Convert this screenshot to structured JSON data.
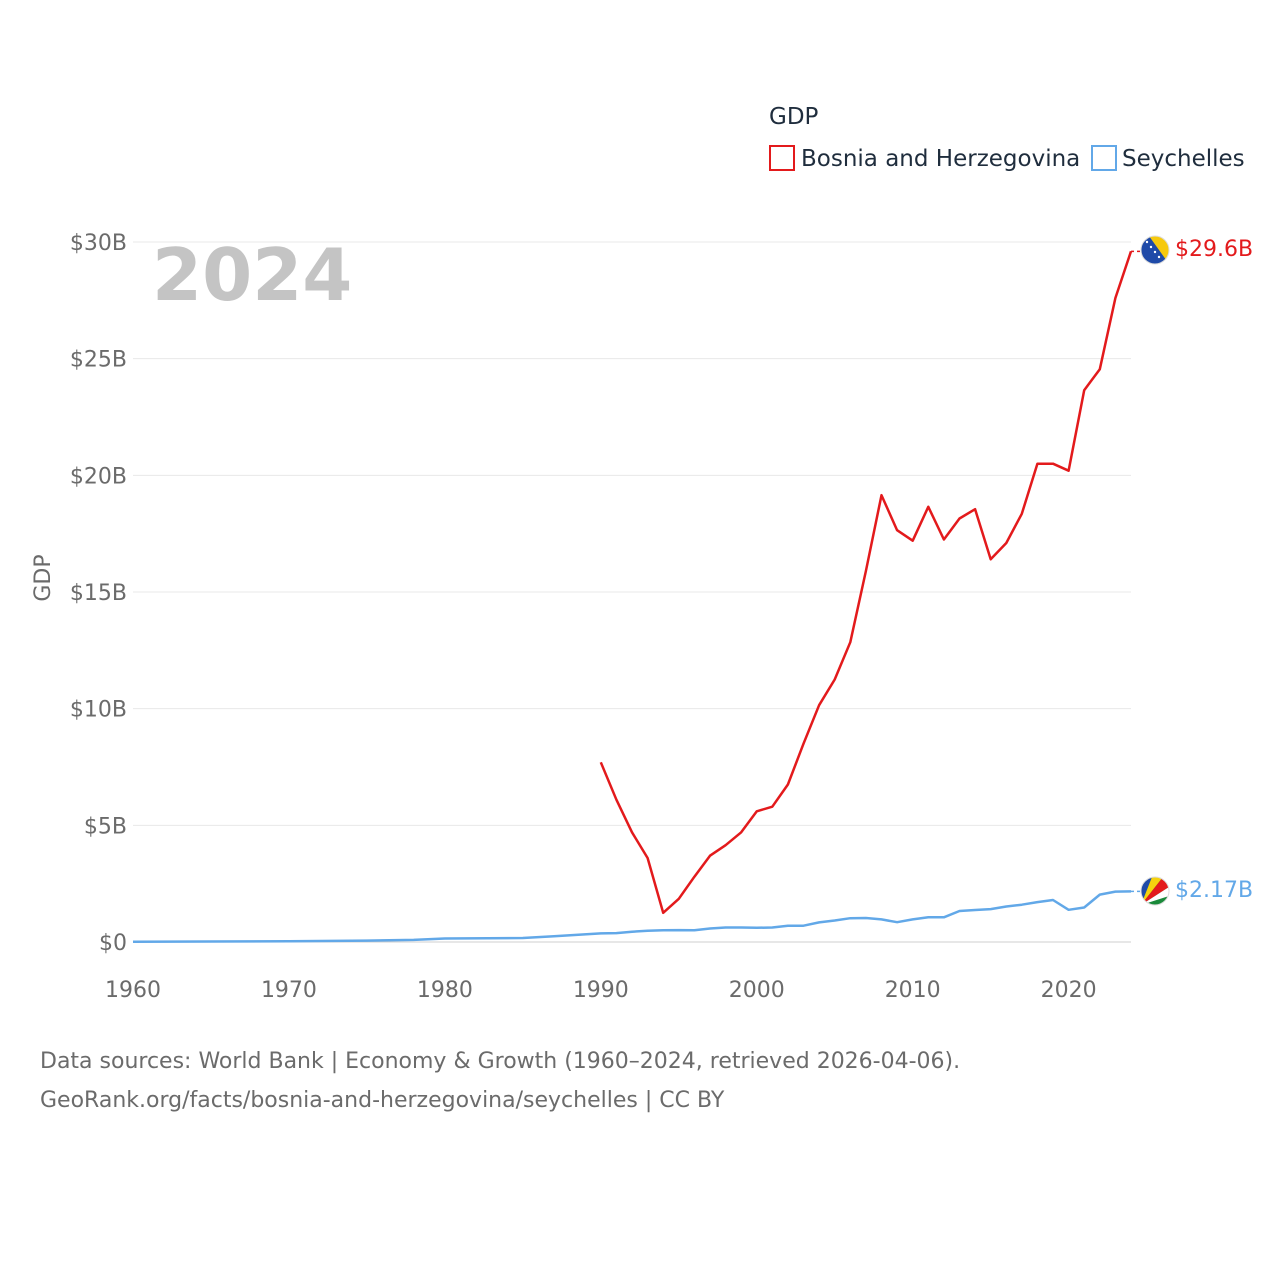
{
  "chart_data": {
    "type": "line",
    "title": "GDP",
    "ylabel": "GDP",
    "xlabel": "",
    "current_year": "2024",
    "xlim": [
      1960,
      2024
    ],
    "ylim": [
      0,
      30
    ],
    "y_unit": "billion USD",
    "x_ticks": [
      {
        "value": 1960,
        "label": "1960"
      },
      {
        "value": 1970,
        "label": "1970"
      },
      {
        "value": 1980,
        "label": "1980"
      },
      {
        "value": 1990,
        "label": "1990"
      },
      {
        "value": 2000,
        "label": "2000"
      },
      {
        "value": 2010,
        "label": "2010"
      },
      {
        "value": 2020,
        "label": "2020"
      }
    ],
    "y_ticks": [
      {
        "value": 0,
        "label": "$0"
      },
      {
        "value": 5,
        "label": "$5B"
      },
      {
        "value": 10,
        "label": "$10B"
      },
      {
        "value": 15,
        "label": "$15B"
      },
      {
        "value": 20,
        "label": "$20B"
      },
      {
        "value": 25,
        "label": "$25B"
      },
      {
        "value": 30,
        "label": "$30B"
      }
    ],
    "legend_title": "GDP",
    "legend_position": "top-right",
    "series": [
      {
        "name": "Bosnia and Herzegovina",
        "color": "#e31a1c",
        "end_label": "$29.6B",
        "flag_icon": "bosnia-flag-icon",
        "x": [
          1990,
          1991,
          1992,
          1993,
          1994,
          1995,
          1996,
          1997,
          1998,
          1999,
          2000,
          2001,
          2002,
          2003,
          2004,
          2005,
          2006,
          2007,
          2008,
          2009,
          2010,
          2011,
          2012,
          2013,
          2014,
          2015,
          2016,
          2017,
          2018,
          2019,
          2020,
          2021,
          2022,
          2023,
          2024
        ],
        "values": [
          7.7,
          6.1,
          4.7,
          3.6,
          1.25,
          1.85,
          2.8,
          3.7,
          4.15,
          4.7,
          5.6,
          5.8,
          6.75,
          8.5,
          10.15,
          11.25,
          12.85,
          15.9,
          19.15,
          17.65,
          17.2,
          18.65,
          17.25,
          18.15,
          18.55,
          16.4,
          17.1,
          18.35,
          20.5,
          20.5,
          20.2,
          23.65,
          24.55,
          27.6,
          29.6
        ]
      },
      {
        "name": "Seychelles",
        "color": "#62a8e8",
        "end_label": "$2.17B",
        "flag_icon": "seychelles-flag-icon",
        "x": [
          1960,
          1965,
          1970,
          1975,
          1978,
          1980,
          1985,
          1987,
          1990,
          1991,
          1992,
          1993,
          1994,
          1995,
          1996,
          1997,
          1998,
          1999,
          2000,
          2001,
          2002,
          2003,
          2004,
          2005,
          2006,
          2007,
          2008,
          2009,
          2010,
          2011,
          2012,
          2013,
          2014,
          2015,
          2016,
          2017,
          2018,
          2019,
          2020,
          2021,
          2022,
          2023,
          2024
        ],
        "values": [
          0.01,
          0.02,
          0.03,
          0.06,
          0.09,
          0.15,
          0.17,
          0.25,
          0.37,
          0.38,
          0.44,
          0.48,
          0.5,
          0.51,
          0.5,
          0.58,
          0.62,
          0.62,
          0.61,
          0.62,
          0.7,
          0.7,
          0.84,
          0.92,
          1.02,
          1.03,
          0.97,
          0.85,
          0.97,
          1.06,
          1.06,
          1.33,
          1.37,
          1.41,
          1.52,
          1.6,
          1.71,
          1.8,
          1.38,
          1.48,
          2.03,
          2.16,
          2.17
        ]
      }
    ]
  },
  "source": {
    "line1": "Data sources: World Bank | Economy & Growth (1960–2024, retrieved 2026-04-06).",
    "line2": "GeoRank.org/facts/bosnia-and-herzegovina/seychelles | CC BY"
  }
}
